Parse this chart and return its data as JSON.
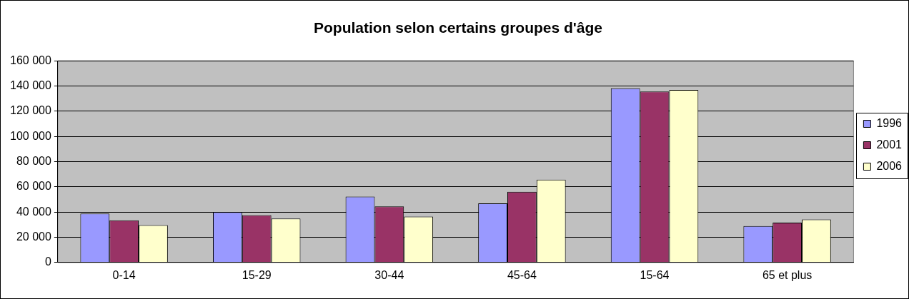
{
  "chart_data": {
    "type": "bar",
    "title": "Population selon certains groupes d'âge",
    "categories": [
      "0-14",
      "15-29",
      "30-44",
      "45-64",
      "15-64",
      "65 et plus"
    ],
    "series": [
      {
        "name": "1996",
        "color": "#9999ff",
        "values": [
          38800,
          40000,
          52200,
          46900,
          138200,
          28900
        ]
      },
      {
        "name": "2001",
        "color": "#993366",
        "values": [
          33400,
          37600,
          44500,
          56100,
          135600,
          31600
        ]
      },
      {
        "name": "2006",
        "color": "#ffffcc",
        "values": [
          29600,
          34900,
          36400,
          65700,
          136900,
          34200
        ]
      }
    ],
    "ylim": [
      0,
      160000
    ],
    "yticks": [
      {
        "value": 0,
        "label": "0"
      },
      {
        "value": 20000,
        "label": "20 000"
      },
      {
        "value": 40000,
        "label": "40 000"
      },
      {
        "value": 60000,
        "label": "60 000"
      },
      {
        "value": 80000,
        "label": "80 000"
      },
      {
        "value": 100000,
        "label": "100 000"
      },
      {
        "value": 120000,
        "label": "120 000"
      },
      {
        "value": 140000,
        "label": "140 000"
      },
      {
        "value": 160000,
        "label": "160 000"
      }
    ],
    "grid": "y",
    "legend": "right"
  }
}
